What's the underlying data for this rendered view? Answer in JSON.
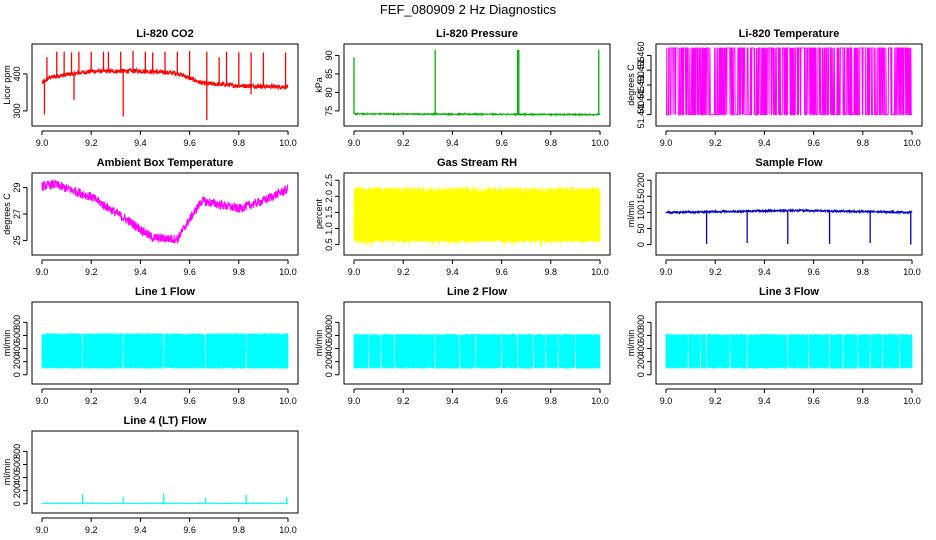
{
  "figure": {
    "title": "FEF_080909  2 Hz Diagnostics"
  },
  "chart_data": [
    {
      "id": "co2",
      "type": "line",
      "title": "Li-820 CO2",
      "ylabel": "Licor ppm",
      "color": "#ff0000",
      "xlim": [
        9.0,
        10.0
      ],
      "ylim": [
        270,
        470
      ],
      "xticks": [
        9.0,
        9.2,
        9.4,
        9.6,
        9.8,
        10.0
      ],
      "xtick_labels": [
        "9.0",
        "9.2",
        "9.4",
        "9.6",
        "9.8",
        "10.0"
      ],
      "yticks": [
        300,
        400
      ],
      "ytick_labels": [
        "300",
        "400"
      ],
      "series": [
        {
          "name": "CO2",
          "baseline": [
            [
              9.0,
              375
            ],
            [
              9.03,
              390
            ],
            [
              9.1,
              398
            ],
            [
              9.2,
              407
            ],
            [
              9.4,
              408
            ],
            [
              9.55,
              402
            ],
            [
              9.65,
              375
            ],
            [
              9.8,
              368
            ],
            [
              10.0,
              365
            ]
          ],
          "noise": 6,
          "spikes": [
            [
              9.02,
              445
            ],
            [
              9.06,
              460
            ],
            [
              9.09,
              460
            ],
            [
              9.12,
              458
            ],
            [
              9.15,
              460
            ],
            [
              9.2,
              460
            ],
            [
              9.25,
              460
            ],
            [
              9.27,
              460
            ],
            [
              9.32,
              460
            ],
            [
              9.37,
              462
            ],
            [
              9.42,
              460
            ],
            [
              9.45,
              458
            ],
            [
              9.5,
              460
            ],
            [
              9.55,
              460
            ],
            [
              9.6,
              462
            ],
            [
              9.67,
              460
            ],
            [
              9.72,
              445
            ],
            [
              9.75,
              460
            ],
            [
              9.8,
              458
            ],
            [
              9.85,
              458
            ],
            [
              9.9,
              458
            ],
            [
              9.99,
              458
            ],
            [
              9.01,
              290
            ],
            [
              9.13,
              330
            ],
            [
              9.33,
              285
            ],
            [
              9.67,
              275
            ],
            [
              9.85,
              345
            ]
          ]
        }
      ]
    },
    {
      "id": "pressure",
      "type": "line",
      "title": "Li-820 Pressure",
      "ylabel": "kPa",
      "color": "#00b000",
      "xlim": [
        9.0,
        10.0
      ],
      "ylim": [
        72,
        92
      ],
      "xticks": [
        9.0,
        9.2,
        9.4,
        9.6,
        9.8,
        10.0
      ],
      "xtick_labels": [
        "9.0",
        "9.2",
        "9.4",
        "9.6",
        "9.8",
        "10.0"
      ],
      "yticks": [
        75,
        80,
        85,
        90
      ],
      "ytick_labels": [
        "75",
        "80",
        "85",
        "90"
      ],
      "series": [
        {
          "name": "Pressure",
          "baseline": [
            [
              9.0,
              74.2
            ],
            [
              10.0,
              74.0
            ]
          ],
          "noise": 0.15,
          "spikes": [
            [
              9.0,
              89.5
            ],
            [
              9.33,
              91.5
            ],
            [
              9.665,
              91.5
            ],
            [
              9.67,
              91.5
            ],
            [
              9.995,
              91.5
            ]
          ]
        }
      ]
    },
    {
      "id": "licor_temp",
      "type": "line",
      "title": "Li-820 Temperature",
      "ylabel": "degrees C",
      "color": "#ff00ff",
      "xlim": [
        9.0,
        10.0
      ],
      "ylim": [
        51.4375,
        51.4625
      ],
      "xticks": [
        9.0,
        9.2,
        9.4,
        9.6,
        9.8,
        10.0
      ],
      "xtick_labels": [
        "9.0",
        "9.2",
        "9.4",
        "9.6",
        "9.8",
        "10.0"
      ],
      "yticks": [
        51.44,
        51.445,
        51.45,
        51.455,
        51.46
      ],
      "ytick_labels": [
        "51.440",
        "51.445",
        "51.450",
        "51.455",
        "51.460"
      ],
      "series": [
        {
          "name": "Temperature",
          "levels": [
            51.44,
            51.4625
          ],
          "density": 0.35
        }
      ]
    },
    {
      "id": "box_temp",
      "type": "line",
      "title": "Ambient Box Temperature",
      "ylabel": "degrees C",
      "color": "#ff00ff",
      "xlim": [
        9.0,
        10.0
      ],
      "ylim": [
        24.2,
        29.8
      ],
      "xticks": [
        9.0,
        9.2,
        9.4,
        9.6,
        9.8,
        10.0
      ],
      "xtick_labels": [
        "9.0",
        "9.2",
        "9.4",
        "9.6",
        "9.8",
        "10.0"
      ],
      "yticks": [
        25,
        27,
        29
      ],
      "ytick_labels": [
        "25",
        "27",
        "29"
      ],
      "series": [
        {
          "name": "Box Temp",
          "baseline": [
            [
              9.0,
              29.1
            ],
            [
              9.05,
              29.25
            ],
            [
              9.2,
              28.3
            ],
            [
              9.35,
              26.5
            ],
            [
              9.45,
              25.2
            ],
            [
              9.55,
              25.1
            ],
            [
              9.6,
              26.6
            ],
            [
              9.65,
              28.0
            ],
            [
              9.7,
              27.8
            ],
            [
              9.8,
              27.4
            ],
            [
              9.9,
              28.0
            ],
            [
              10.0,
              28.9
            ]
          ],
          "noise": 0.35,
          "spikes": []
        }
      ]
    },
    {
      "id": "rh",
      "type": "line",
      "title": "Gas Stream RH",
      "ylabel": "percent",
      "color": "#ffff00",
      "xlim": [
        9.0,
        10.0
      ],
      "ylim": [
        0.3,
        2.6
      ],
      "xticks": [
        9.0,
        9.2,
        9.4,
        9.6,
        9.8,
        10.0
      ],
      "xtick_labels": [
        "9.0",
        "9.2",
        "9.4",
        "9.6",
        "9.8",
        "10.0"
      ],
      "yticks": [
        0.5,
        1.0,
        1.5,
        2.0,
        2.5
      ],
      "ytick_labels": [
        "0.5",
        "1.0",
        "1.5",
        "2.0",
        "2.5"
      ],
      "series": [
        {
          "name": "RH",
          "band": [
            0.6,
            2.3
          ],
          "dropouts_to": 0.45
        }
      ]
    },
    {
      "id": "sample_flow",
      "type": "line",
      "title": "Sample Flow",
      "ylabel": "ml/min",
      "color": "#0000cc",
      "xlim": [
        9.0,
        10.0
      ],
      "ylim": [
        -20,
        210
      ],
      "xticks": [
        9.0,
        9.2,
        9.4,
        9.6,
        9.8,
        10.0
      ],
      "xtick_labels": [
        "9.0",
        "9.2",
        "9.4",
        "9.6",
        "9.8",
        "10.0"
      ],
      "yticks": [
        0,
        50,
        100,
        150,
        200
      ],
      "ytick_labels": [
        "0",
        "50",
        "100",
        "150",
        "200"
      ],
      "series": [
        {
          "name": "Sample Flow",
          "baseline": [
            [
              9.0,
              100
            ],
            [
              9.2,
              102
            ],
            [
              9.5,
              106
            ],
            [
              9.7,
              104
            ],
            [
              10.0,
              100
            ]
          ],
          "noise": 3,
          "spikes": [
            [
              9.165,
              2
            ],
            [
              9.33,
              5
            ],
            [
              9.495,
              2
            ],
            [
              9.665,
              2
            ],
            [
              9.83,
              5
            ],
            [
              9.995,
              0
            ]
          ]
        }
      ]
    },
    {
      "id": "line1",
      "type": "line",
      "title": "Line 1 Flow",
      "ylabel": "ml/min",
      "color": "#00ffff",
      "xlim": [
        9.0,
        10.0
      ],
      "ylim": [
        -80,
        1050
      ],
      "xticks": [
        9.0,
        9.2,
        9.4,
        9.6,
        9.8,
        10.0
      ],
      "xtick_labels": [
        "9.0",
        "9.2",
        "9.4",
        "9.6",
        "9.8",
        "10.0"
      ],
      "yticks": [
        0,
        200,
        400,
        600,
        800
      ],
      "ytick_labels": [
        "0",
        "200",
        "400",
        "600",
        "800"
      ],
      "series": [
        {
          "name": "Line 1",
          "band": [
            100,
            620
          ],
          "gaps": [
            9.165,
            9.33,
            9.495,
            9.665,
            9.83
          ]
        }
      ]
    },
    {
      "id": "line2",
      "type": "line",
      "title": "Line 2 Flow",
      "ylabel": "ml/min",
      "color": "#00ffff",
      "xlim": [
        9.0,
        10.0
      ],
      "ylim": [
        -80,
        1050
      ],
      "xticks": [
        9.0,
        9.2,
        9.4,
        9.6,
        9.8,
        10.0
      ],
      "xtick_labels": [
        "9.0",
        "9.2",
        "9.4",
        "9.6",
        "9.8",
        "10.0"
      ],
      "yticks": [
        0,
        200,
        400,
        600,
        800
      ],
      "ytick_labels": [
        "0",
        "200",
        "400",
        "600",
        "800"
      ],
      "series": [
        {
          "name": "Line 2",
          "band": [
            100,
            610
          ],
          "gaps": [
            9.06,
            9.11,
            9.165,
            9.33,
            9.43,
            9.495,
            9.6,
            9.665,
            9.73,
            9.78,
            9.83,
            9.9
          ]
        }
      ]
    },
    {
      "id": "line3",
      "type": "line",
      "title": "Line 3 Flow",
      "ylabel": "ml/min",
      "color": "#00ffff",
      "xlim": [
        9.0,
        10.0
      ],
      "ylim": [
        -80,
        1050
      ],
      "xticks": [
        9.0,
        9.2,
        9.4,
        9.6,
        9.8,
        10.0
      ],
      "xtick_labels": [
        "9.0",
        "9.2",
        "9.4",
        "9.6",
        "9.8",
        "10.0"
      ],
      "yticks": [
        0,
        200,
        400,
        600,
        800
      ],
      "ytick_labels": [
        "0",
        "200",
        "400",
        "600",
        "800"
      ],
      "series": [
        {
          "name": "Line 3",
          "band": [
            100,
            610
          ],
          "gaps": [
            9.09,
            9.14,
            9.165,
            9.26,
            9.33,
            9.495,
            9.58,
            9.665,
            9.72,
            9.78,
            9.83,
            9.88,
            9.95
          ]
        }
      ]
    },
    {
      "id": "line4",
      "type": "line",
      "title": "Line 4 (LT) Flow",
      "ylabel": "ml/min",
      "color": "#00ffff",
      "xlim": [
        9.0,
        10.0
      ],
      "ylim": [
        -80,
        1050
      ],
      "xticks": [
        9.0,
        9.2,
        9.4,
        9.6,
        9.8,
        10.0
      ],
      "xtick_labels": [
        "9.0",
        "9.2",
        "9.4",
        "9.6",
        "9.8",
        "10.0"
      ],
      "yticks": [
        0,
        200,
        400,
        600,
        800
      ],
      "ytick_labels": [
        "0",
        "200",
        "400",
        "600",
        "800"
      ],
      "series": [
        {
          "name": "Line 4",
          "baseline": [
            [
              9.0,
              5
            ],
            [
              10.0,
              5
            ]
          ],
          "noise": 3,
          "spikes": [
            [
              9.165,
              150
            ],
            [
              9.33,
              100
            ],
            [
              9.495,
              160
            ],
            [
              9.665,
              90
            ],
            [
              9.83,
              140
            ],
            [
              9.995,
              100
            ]
          ]
        }
      ]
    }
  ]
}
